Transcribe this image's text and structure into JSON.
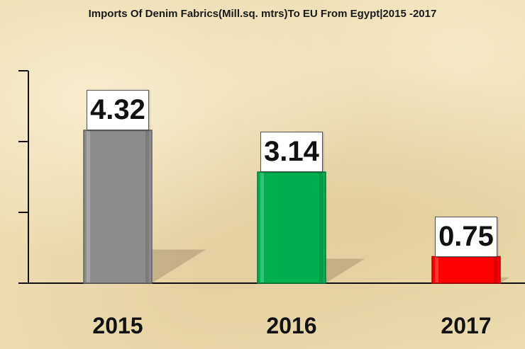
{
  "chart_data": {
    "type": "bar",
    "title": "Imports Of Denim Fabrics(Mill.sq. mtrs)To EU From Egypt|2015 -2017",
    "categories": [
      "2015",
      "2016",
      "2017"
    ],
    "values": [
      4.32,
      3.14,
      0.75
    ],
    "value_labels": [
      "4.32",
      "3.14",
      "0.75"
    ],
    "colors": [
      "#8c8c8c",
      "#00b050",
      "#ff0000"
    ],
    "xlabel": "",
    "ylabel": "",
    "ylim": [
      0,
      6
    ],
    "y_ticks": [
      0,
      2,
      4,
      6
    ],
    "y_tick_labels_shown": false,
    "grid": false,
    "legend": "none"
  }
}
